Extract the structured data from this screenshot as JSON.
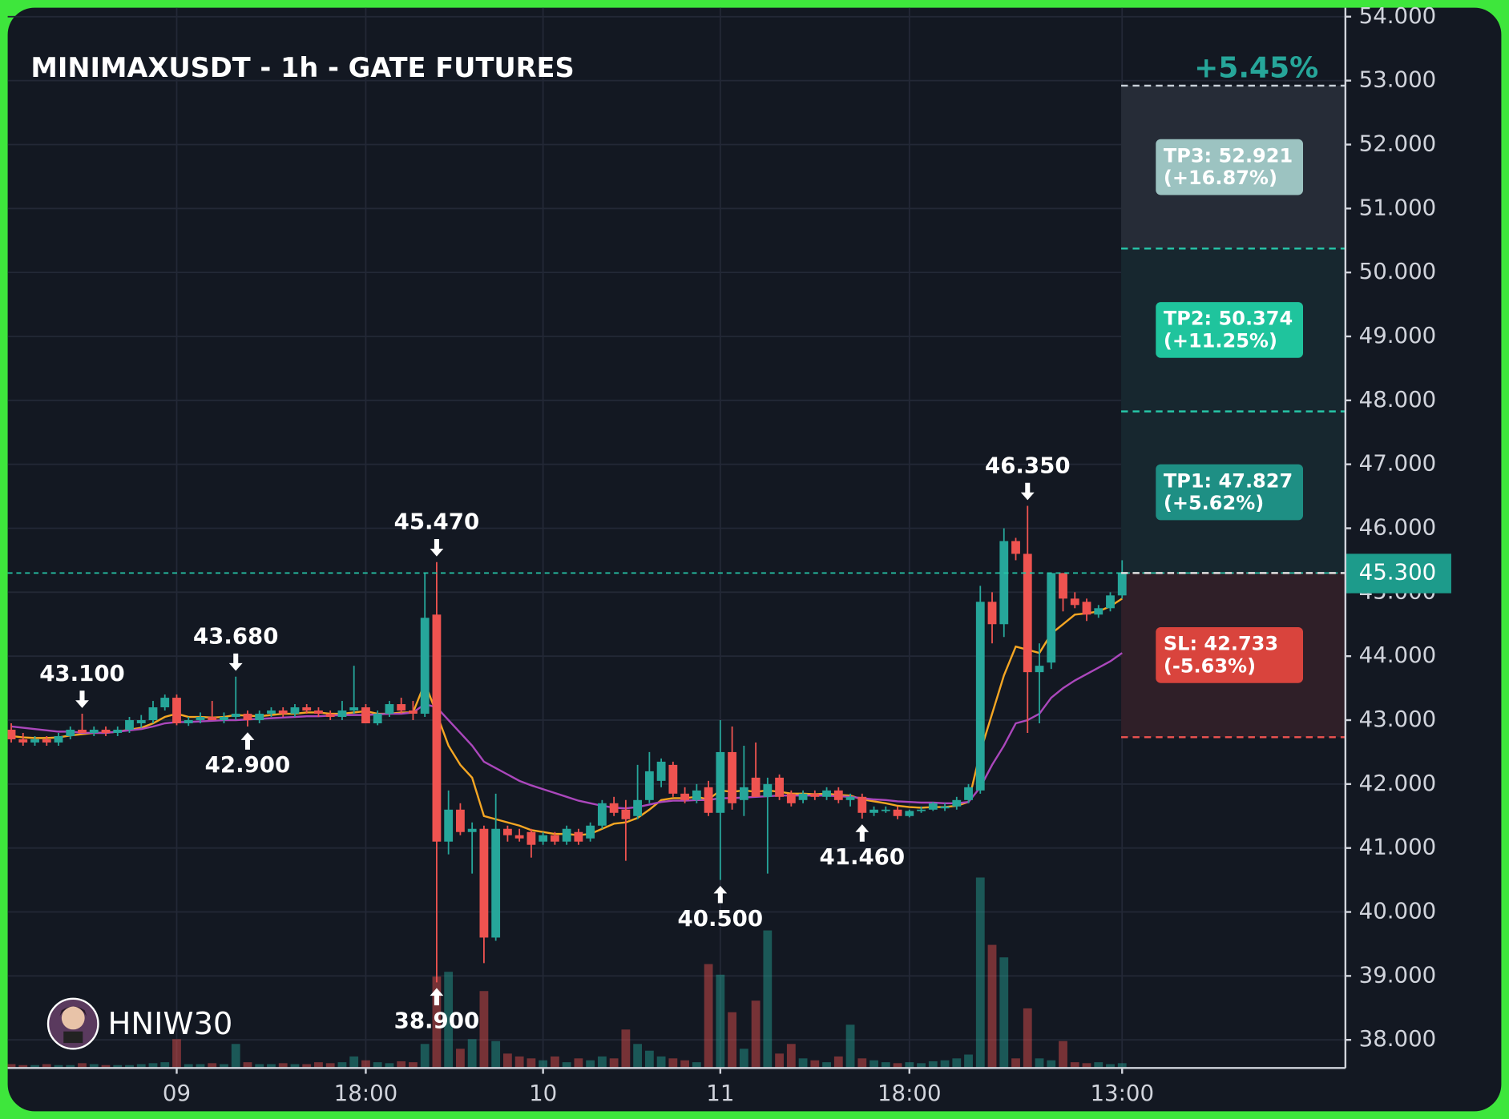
{
  "chart_data": {
    "type": "candlestick",
    "title": "MINIMAXUSDT - 1h - GATE FUTURES",
    "change_label": "+5.45%",
    "watermark": "HNIW30",
    "categories": [
      null,
      null,
      null,
      null,
      null,
      null,
      null,
      null,
      null,
      null,
      null,
      null,
      null,
      null,
      "09",
      null,
      null,
      null,
      null,
      null,
      null,
      null,
      null,
      null,
      null,
      null,
      null,
      null,
      null,
      null,
      "18:00",
      null,
      null,
      null,
      null,
      null,
      null,
      null,
      null,
      null,
      null,
      null,
      null,
      null,
      null,
      "10",
      null,
      null,
      null,
      null,
      null,
      null,
      null,
      null,
      null,
      null,
      null,
      null,
      null,
      null,
      "11",
      null,
      null,
      null,
      null,
      null,
      null,
      null,
      null,
      null,
      null,
      null,
      null,
      null,
      null,
      null,
      "18:00",
      null,
      null,
      null,
      null,
      null,
      null,
      null,
      null,
      null,
      null,
      null,
      null,
      null,
      null,
      null,
      null,
      null,
      "13:00"
    ],
    "open": [
      42.85,
      42.7,
      42.65,
      42.7,
      42.65,
      42.75,
      42.85,
      42.8,
      42.85,
      42.8,
      42.85,
      42.95,
      43.0,
      43.2,
      43.35,
      42.95,
      43.0,
      43.05,
      43.0,
      43.05,
      43.1,
      43.0,
      43.1,
      43.15,
      43.1,
      43.2,
      43.15,
      43.1,
      43.05,
      43.15,
      43.2,
      42.95,
      43.1,
      43.25,
      43.15,
      43.1,
      44.65,
      41.1,
      41.6,
      41.25,
      41.3,
      39.6,
      41.3,
      41.2,
      41.25,
      41.1,
      41.2,
      41.1,
      41.25,
      41.15,
      41.35,
      41.7,
      41.6,
      41.5,
      41.75,
      42.05,
      42.3,
      41.85,
      41.75,
      41.95,
      41.55,
      42.5,
      41.75,
      42.1,
      41.8,
      42.1,
      41.85,
      41.75,
      41.85,
      41.8,
      41.9,
      41.75,
      41.8,
      41.55,
      41.6,
      41.6,
      41.5,
      41.58,
      41.6,
      41.62,
      41.65,
      41.75,
      41.9,
      44.85,
      44.5,
      45.8,
      45.6,
      43.75,
      43.9,
      45.3,
      44.9,
      44.85,
      44.65,
      44.75,
      44.95
    ],
    "high": [
      42.95,
      42.8,
      42.75,
      42.75,
      42.8,
      42.9,
      43.1,
      42.9,
      42.9,
      42.9,
      43.05,
      43.08,
      43.3,
      43.4,
      43.4,
      43.05,
      43.12,
      43.3,
      43.12,
      43.68,
      43.15,
      43.15,
      43.2,
      43.2,
      43.25,
      43.25,
      43.2,
      43.15,
      43.3,
      43.85,
      43.25,
      43.15,
      43.3,
      43.35,
      43.3,
      45.3,
      45.47,
      41.9,
      41.7,
      41.4,
      41.35,
      41.85,
      41.35,
      41.3,
      41.3,
      41.25,
      41.25,
      41.35,
      41.3,
      41.4,
      41.75,
      41.8,
      41.75,
      42.3,
      42.5,
      42.4,
      42.35,
      41.95,
      42.0,
      42.05,
      43.0,
      42.9,
      42.6,
      42.65,
      42.1,
      42.15,
      41.9,
      41.9,
      41.9,
      41.95,
      41.95,
      41.85,
      41.85,
      41.65,
      41.65,
      41.65,
      41.6,
      41.65,
      41.72,
      41.7,
      41.8,
      42.0,
      45.1,
      45.0,
      46.0,
      45.85,
      46.35,
      44.2,
      45.3,
      45.3,
      45.0,
      44.9,
      44.8,
      45.0,
      45.5
    ],
    "low": [
      42.65,
      42.6,
      42.6,
      42.6,
      42.6,
      42.7,
      42.8,
      42.75,
      42.75,
      42.75,
      42.8,
      42.88,
      42.95,
      43.15,
      42.92,
      42.91,
      42.95,
      43.0,
      42.95,
      43.0,
      42.9,
      42.95,
      43.05,
      43.05,
      43.05,
      43.1,
      43.05,
      43.0,
      43.0,
      43.1,
      42.95,
      42.92,
      43.05,
      43.1,
      43.0,
      43.05,
      38.9,
      40.9,
      41.2,
      40.6,
      39.2,
      39.55,
      41.1,
      41.1,
      40.85,
      41.05,
      41.05,
      41.05,
      41.05,
      41.1,
      41.3,
      41.5,
      40.8,
      41.45,
      41.7,
      41.95,
      41.8,
      41.7,
      41.7,
      41.5,
      40.5,
      41.6,
      41.5,
      41.8,
      40.6,
      41.75,
      41.65,
      41.7,
      41.75,
      41.75,
      41.7,
      41.65,
      41.46,
      41.5,
      41.55,
      41.45,
      41.48,
      41.55,
      41.58,
      41.58,
      41.6,
      41.7,
      41.85,
      44.2,
      44.3,
      45.5,
      42.8,
      42.95,
      43.8,
      44.7,
      44.75,
      44.55,
      44.6,
      44.7,
      44.9
    ],
    "close": [
      42.7,
      42.65,
      42.7,
      42.65,
      42.75,
      42.85,
      42.8,
      42.85,
      42.8,
      42.85,
      43.0,
      43.0,
      43.2,
      43.35,
      42.95,
      43.0,
      43.05,
      43.0,
      43.05,
      43.1,
      43.0,
      43.1,
      43.15,
      43.1,
      43.2,
      43.15,
      43.1,
      43.05,
      43.15,
      43.2,
      42.95,
      43.1,
      43.25,
      43.15,
      43.1,
      44.6,
      41.1,
      41.6,
      41.25,
      41.3,
      39.6,
      41.3,
      41.2,
      41.15,
      41.05,
      41.2,
      41.1,
      41.3,
      41.1,
      41.35,
      41.7,
      41.55,
      41.45,
      41.75,
      42.2,
      42.35,
      41.85,
      41.75,
      41.9,
      41.55,
      42.5,
      41.7,
      41.95,
      41.8,
      42.0,
      41.8,
      41.7,
      41.85,
      41.8,
      41.9,
      41.75,
      41.8,
      41.55,
      41.6,
      41.6,
      41.5,
      41.58,
      41.6,
      41.7,
      41.65,
      41.75,
      41.95,
      44.85,
      44.5,
      45.8,
      45.6,
      43.75,
      43.85,
      45.3,
      44.9,
      44.8,
      44.65,
      44.75,
      44.95,
      45.3
    ],
    "volume": [
      4,
      3,
      3,
      4,
      3,
      3,
      5,
      4,
      3,
      3,
      3,
      4,
      5,
      6,
      30,
      4,
      4,
      5,
      4,
      25,
      6,
      4,
      4,
      5,
      4,
      4,
      6,
      5,
      6,
      12,
      8,
      6,
      5,
      7,
      6,
      25,
      95,
      100,
      20,
      30,
      80,
      28,
      15,
      12,
      10,
      8,
      12,
      6,
      10,
      8,
      12,
      10,
      40,
      25,
      18,
      12,
      10,
      8,
      6,
      108,
      97,
      58,
      20,
      70,
      143,
      15,
      25,
      10,
      8,
      6,
      12,
      45,
      10,
      8,
      6,
      5,
      6,
      5,
      7,
      8,
      10,
      14,
      198,
      128,
      115,
      10,
      62,
      10,
      8,
      28,
      6,
      5,
      6,
      4,
      5
    ],
    "up_color": "#26a69a",
    "down_color": "#ef5350",
    "lines": [
      {
        "color": "#f5a623",
        "values": [
          42.75,
          42.73,
          42.72,
          42.72,
          42.73,
          42.76,
          42.78,
          42.8,
          42.8,
          42.82,
          42.85,
          42.88,
          42.95,
          43.05,
          43.1,
          43.05,
          43.05,
          43.04,
          43.05,
          43.08,
          43.07,
          43.06,
          43.08,
          43.1,
          43.1,
          43.12,
          43.12,
          43.1,
          43.1,
          43.12,
          43.14,
          43.1,
          43.1,
          43.12,
          43.12,
          43.58,
          43.1,
          42.6,
          42.3,
          42.1,
          41.5,
          41.45,
          41.4,
          41.35,
          41.28,
          41.25,
          41.22,
          41.22,
          41.2,
          41.22,
          41.3,
          41.38,
          41.4,
          41.47,
          41.6,
          41.75,
          41.78,
          41.78,
          41.8,
          41.76,
          41.9,
          41.88,
          41.9,
          41.88,
          41.9,
          41.88,
          41.85,
          41.85,
          41.84,
          41.85,
          41.83,
          41.82,
          41.76,
          41.73,
          41.7,
          41.66,
          41.64,
          41.63,
          41.64,
          41.64,
          41.66,
          41.72,
          42.5,
          43.1,
          43.7,
          44.15,
          44.1,
          44.05,
          44.35,
          44.5,
          44.65,
          44.67,
          44.7,
          44.78,
          44.9
        ]
      },
      {
        "color": "#ab47bc",
        "values": [
          42.9,
          42.88,
          42.86,
          42.84,
          42.82,
          42.82,
          42.8,
          42.8,
          42.8,
          42.82,
          42.84,
          42.86,
          42.9,
          42.95,
          42.97,
          42.97,
          42.98,
          42.99,
          43.0,
          43.0,
          43.01,
          43.02,
          43.03,
          43.04,
          43.05,
          43.06,
          43.06,
          43.07,
          43.08,
          43.08,
          43.08,
          43.09,
          43.1,
          43.1,
          43.12,
          43.25,
          43.2,
          43.0,
          42.8,
          42.6,
          42.35,
          42.25,
          42.15,
          42.05,
          41.98,
          41.92,
          41.86,
          41.8,
          41.74,
          41.7,
          41.66,
          41.63,
          41.62,
          41.64,
          41.68,
          41.72,
          41.74,
          41.74,
          41.75,
          41.75,
          41.78,
          41.78,
          41.79,
          41.8,
          41.81,
          41.82,
          41.82,
          41.82,
          41.82,
          41.82,
          41.81,
          41.8,
          41.78,
          41.76,
          41.75,
          41.73,
          41.72,
          41.71,
          41.71,
          41.7,
          41.7,
          41.72,
          41.95,
          42.3,
          42.6,
          42.95,
          43.0,
          43.1,
          43.35,
          43.5,
          43.62,
          43.72,
          43.82,
          43.92,
          44.05
        ]
      }
    ],
    "ylim": [
      37.56,
      54.14
    ],
    "yticks": [
      {
        "value": 38,
        "label": "38.000"
      },
      {
        "value": 39,
        "label": "39.000"
      },
      {
        "value": 40,
        "label": "40.000"
      },
      {
        "value": 41,
        "label": "41.000"
      },
      {
        "value": 42,
        "label": "42.000"
      },
      {
        "value": 43,
        "label": "43.000"
      },
      {
        "value": 44,
        "label": "44.000"
      },
      {
        "value": 45,
        "label": "45.000"
      },
      {
        "value": 46,
        "label": "46.000"
      },
      {
        "value": 47,
        "label": "47.000"
      },
      {
        "value": 48,
        "label": "48.000"
      },
      {
        "value": 49,
        "label": "49.000"
      },
      {
        "value": 50,
        "label": "50.000"
      },
      {
        "value": 51,
        "label": "51.000"
      },
      {
        "value": 52,
        "label": "52.000"
      },
      {
        "value": 53,
        "label": "53.000"
      },
      {
        "value": 54,
        "label": "54.000"
      }
    ],
    "grid": true,
    "last_price": {
      "value": 45.3,
      "label": "45.300"
    },
    "annotations": [
      {
        "kind": "high",
        "value": 43.1,
        "label": "43.100"
      },
      {
        "kind": "high",
        "value": 43.68,
        "label": "43.680"
      },
      {
        "kind": "low",
        "value": 42.9,
        "label": "42.900"
      },
      {
        "kind": "high",
        "value": 45.47,
        "label": "45.470"
      },
      {
        "kind": "low",
        "value": 38.9,
        "label": "38.900"
      },
      {
        "kind": "low",
        "value": 40.5,
        "label": "40.500"
      },
      {
        "kind": "low",
        "value": 41.46,
        "label": "41.460"
      },
      {
        "kind": "high",
        "value": 46.35,
        "label": "46.350"
      }
    ],
    "levels": [
      {
        "label": "TP3: 52.921",
        "note": "(+16.87%)",
        "value": 52.921,
        "line_color": "#c9d1d9",
        "zone_color": "#262c37",
        "box_color": "#9cc3c1"
      },
      {
        "label": "TP2: 50.374",
        "note": "(+11.25%)",
        "value": 50.374,
        "line_color": "#26c6a8",
        "zone_color": "#17272f",
        "box_color": "#1fc49d"
      },
      {
        "label": "TP1: 47.827",
        "note": "(+5.62%)",
        "value": 47.827,
        "line_color": "#26c6a8",
        "zone_color": "#17272f",
        "box_color": "#1e8f84"
      },
      {
        "label": "SL: 42.733",
        "note": "(-5.63%)",
        "value": 42.733,
        "line_color": "#ef5350",
        "zone_color": "#2f1f28",
        "box_color": "#d9443d"
      }
    ]
  }
}
